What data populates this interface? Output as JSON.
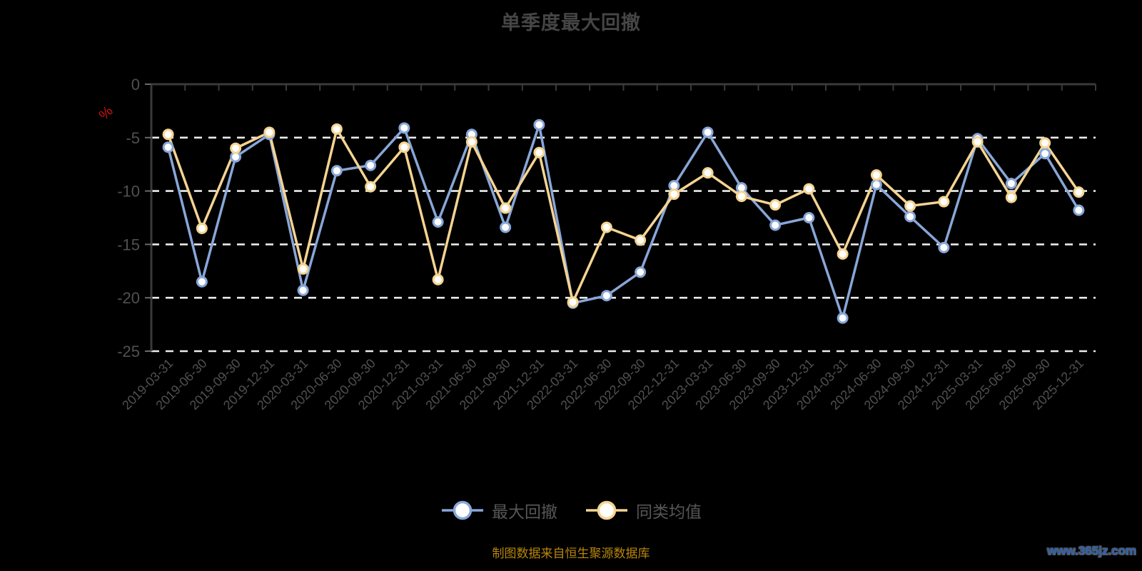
{
  "title": "单季度最大回撤",
  "footer_note": "制图数据来自恒生聚源数据库",
  "watermark": "www.365jz.com",
  "y_axis_unit": "%",
  "colors": {
    "background": "#000000",
    "title_text": "#454545",
    "axis_line": "#3a3a3a",
    "grid_dashed": "#ebebeb",
    "tick_label": "#505050",
    "unit_label_red": "#cc1111",
    "series_blue": "#88a6d8",
    "series_yellow": "#f5d492",
    "marker_fill": "#ffffff",
    "footer_orange": "#b8860b",
    "watermark_blue": "#2f63b4"
  },
  "chart_data": {
    "type": "line",
    "title": "单季度最大回撤",
    "xlabel": "",
    "ylabel": "%",
    "ylim": [
      -25,
      0
    ],
    "yticks": [
      0,
      -5,
      -10,
      -15,
      -20,
      -25
    ],
    "grid": "horizontal dashed white, solid top axis at 0",
    "legend_position": "bottom",
    "categories": [
      "2019-03-31",
      "2019-06-30",
      "2019-09-30",
      "2019-12-31",
      "2020-03-31",
      "2020-06-30",
      "2020-09-30",
      "2020-12-31",
      "2021-03-31",
      "2021-06-30",
      "2021-09-30",
      "2021-12-31",
      "2022-03-31",
      "2022-06-30",
      "2022-09-30",
      "2022-12-31",
      "2023-03-31",
      "2023-06-30",
      "2023-09-30",
      "2023-12-31",
      "2024-03-31",
      "2024-06-30",
      "2024-09-30",
      "2024-12-31",
      "2025-03-31",
      "2025-06-30",
      "2025-09-30",
      "2025-12-31"
    ],
    "series": [
      {
        "name": "最大回撤",
        "color": "#88a6d8",
        "values": [
          -5.9,
          -18.5,
          -6.8,
          -4.7,
          -19.3,
          -8.1,
          -7.6,
          -4.1,
          -12.9,
          -4.7,
          -13.4,
          -3.8,
          -20.5,
          -19.8,
          -17.6,
          -9.5,
          -4.5,
          -9.7,
          -13.2,
          -12.5,
          -21.9,
          -9.4,
          -12.4,
          -15.3,
          -5.1,
          -9.3,
          -6.5,
          -11.8
        ]
      },
      {
        "name": "同类均值",
        "color": "#f5d492",
        "values": [
          -4.7,
          -13.5,
          -6.0,
          -4.5,
          -17.3,
          -4.2,
          -9.6,
          -5.9,
          -18.3,
          -5.4,
          -11.6,
          -6.4,
          -20.4,
          -13.4,
          -14.6,
          -10.3,
          -8.3,
          -10.5,
          -11.3,
          -9.8,
          -15.9,
          -8.5,
          -11.4,
          -11.0,
          -5.4,
          -10.6,
          -5.5,
          -10.1
        ]
      }
    ]
  }
}
